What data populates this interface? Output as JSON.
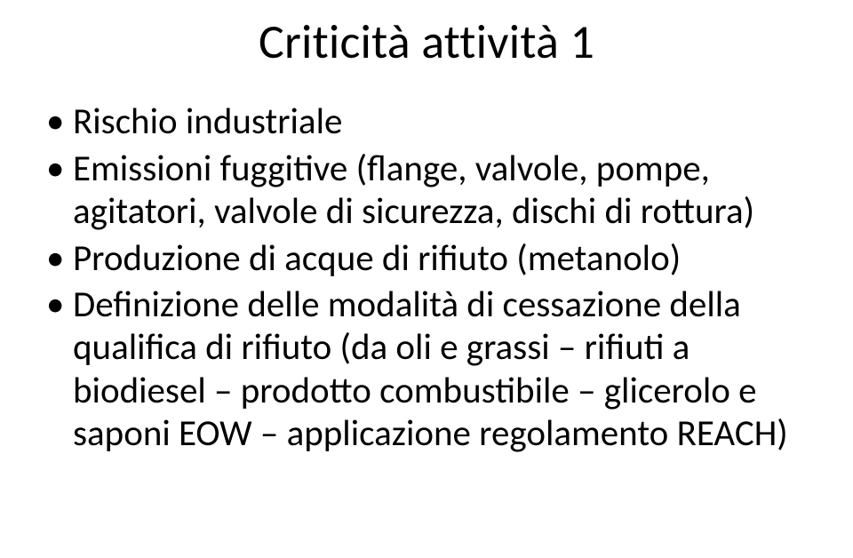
{
  "slide": {
    "title": "Criticità attività 1",
    "title_fontsize": 54,
    "body_fontsize": 41,
    "background_color": "#ffffff",
    "text_color": "#000000",
    "font_family": "Calibri",
    "bullets": [
      "Rischio industriale",
      "Emissioni fuggitive (flange, valvole, pompe, agitatori, valvole di sicurezza, dischi di rottura)",
      "Produzione di acque di rifiuto (metanolo)",
      "Definizione delle modalità di cessazione della qualifica di rifiuto (da oli e grassi – rifiuti a biodiesel – prodotto combustibile – glicerolo e saponi EOW – applicazione regolamento REACH)"
    ]
  }
}
